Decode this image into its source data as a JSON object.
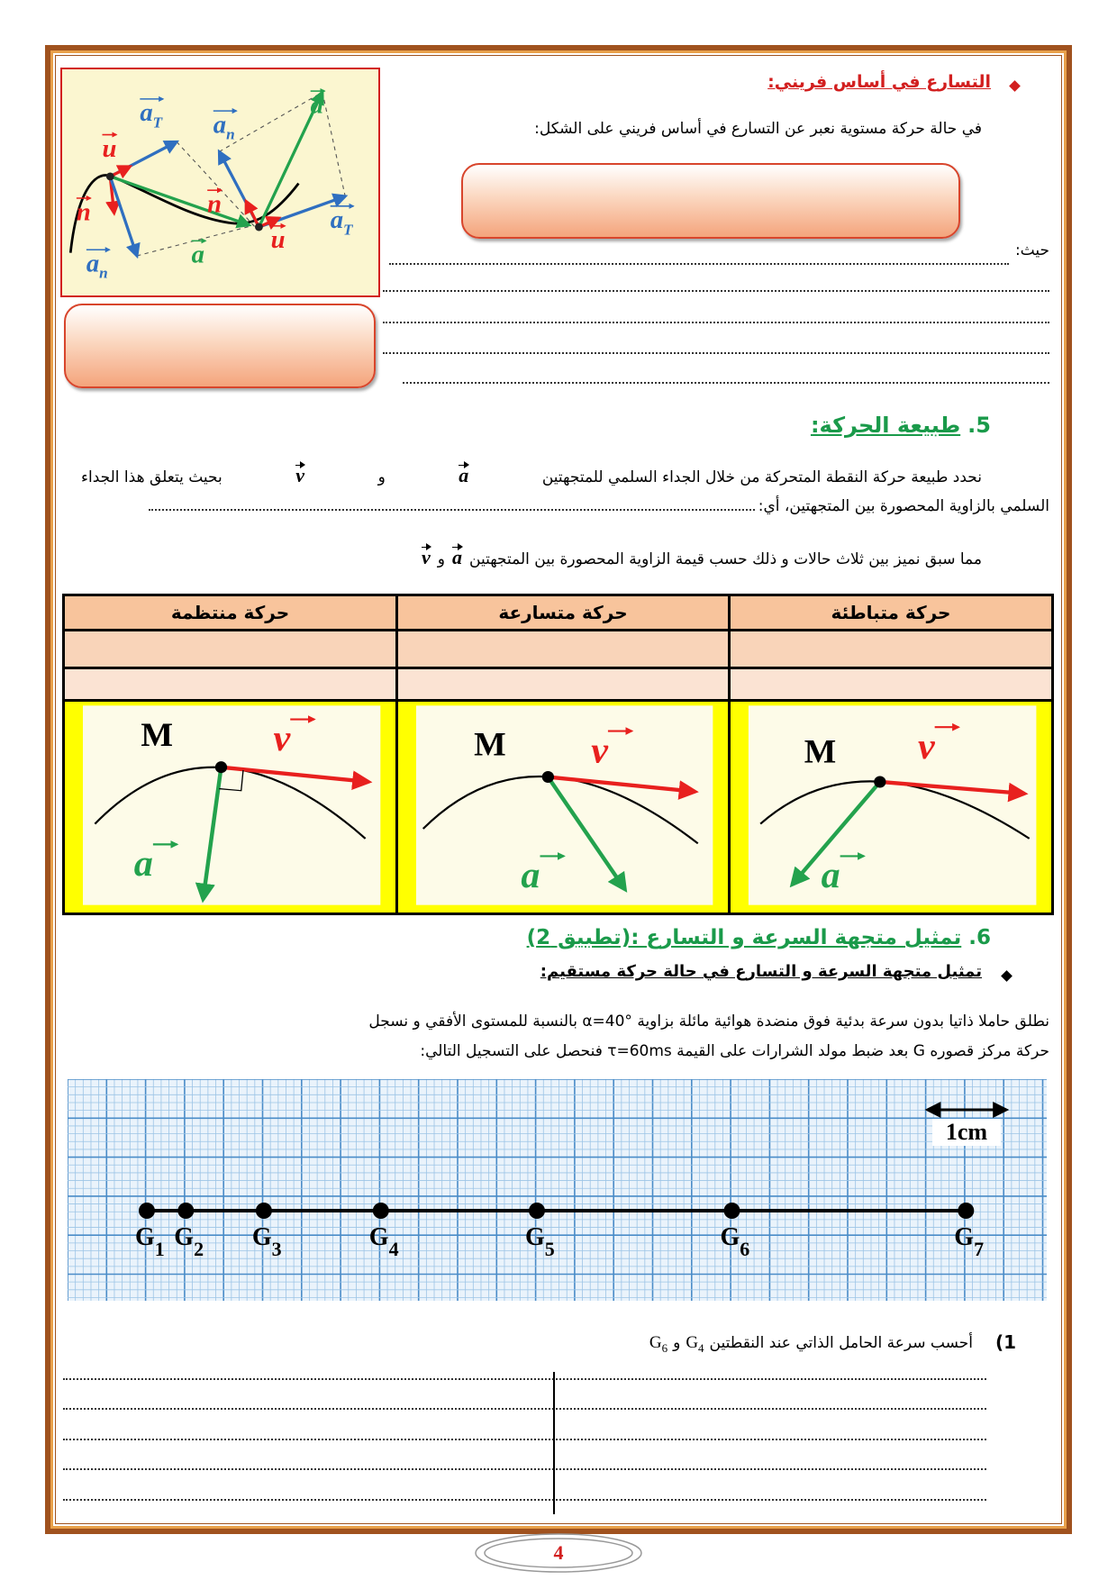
{
  "frenet": {
    "heading": "التسارع في أساس فريني:",
    "intro": "في حالة حركة مستوية نعبر عن التسارع في أساس فريني على الشكل:",
    "where": "حيث:",
    "figure_labels": [
      {
        "base": "a",
        "sub": "T"
      },
      {
        "base": "u"
      },
      {
        "base": "n"
      },
      {
        "base": "a",
        "sub": "n"
      },
      {
        "base": "a"
      },
      {
        "base": "a",
        "sub": "n"
      },
      {
        "base": "n"
      },
      {
        "base": "a"
      },
      {
        "base": "u"
      },
      {
        "base": "a",
        "sub": "T"
      }
    ]
  },
  "nature": {
    "number": "5.",
    "title": "طبيعة الحركة:",
    "p1_a": "نحدد طبيعة حركة النقطة المتحركة من خلال الجداء السلمي للمتجهتين",
    "vec_a": "a",
    "and": "و",
    "vec_v": "v",
    "p1_b": "بحيث يتعلق هذا الجداء",
    "p2": "السلمي بالزاوية المحصورة بين المتجهتين، أي:",
    "p3": "مما سبق نميز بين ثلاث حالات و ذلك حسب قيمة الزاوية المحصورة بين المتجهتين"
  },
  "table": {
    "headers": [
      "حركة متباطئة",
      "حركة متسارعة",
      "حركة منتظمة"
    ],
    "figures": [
      {
        "point": "M",
        "velocity": "v",
        "acceleration": "a"
      },
      {
        "point": "M",
        "velocity": "v",
        "acceleration": "a"
      },
      {
        "point": "M",
        "velocity": "v",
        "acceleration": "a"
      }
    ]
  },
  "application": {
    "number": "6.",
    "title": "تمثيل متجهة السرعة و التسارع :(تطبيق 2)",
    "subheading": "تمثيل متجهة السرعة و التسارع في حالة حركة مستقيم:",
    "line1": "نطلق حاملا ذاتيا بدون سرعة بدئية فوق منضدة هوائية مائلة بزاوية α=40° بالنسبة للمستوى الأفقي و نسجل",
    "line2": "حركة مركز قصوره G بعد ضبط مولد الشرارات على القيمة τ=60ms فنحصل على التسجيل التالي:"
  },
  "graph": {
    "scale_label": "1cm",
    "points": [
      {
        "label": "G",
        "sub": "1",
        "x_cm": 0
      },
      {
        "label": "G",
        "sub": "2",
        "x_cm": 0.5
      },
      {
        "label": "G",
        "sub": "3",
        "x_cm": 1.5
      },
      {
        "label": "G",
        "sub": "4",
        "x_cm": 3
      },
      {
        "label": "G",
        "sub": "5",
        "x_cm": 5
      },
      {
        "label": "G",
        "sub": "6",
        "x_cm": 7.5
      },
      {
        "label": "G",
        "sub": "7",
        "x_cm": 10.5
      }
    ]
  },
  "question": {
    "number": "1)",
    "text": "أحسب سرعة الحامل الذاتي عند النقطتين",
    "and": "و"
  },
  "page_number": "4"
}
